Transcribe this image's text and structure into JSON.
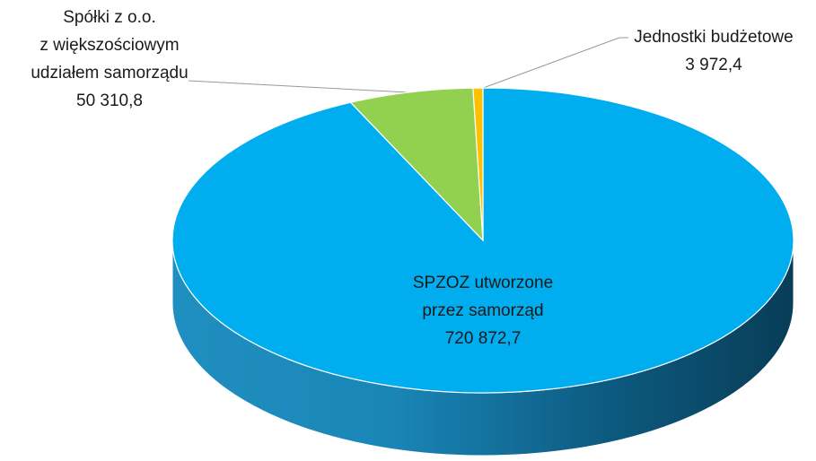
{
  "chart_data": {
    "type": "pie",
    "categories": [
      [
        "SPZOZ utworzone",
        "przez samorząd"
      ],
      [
        "Spółki z o.o.",
        "z większościowym",
        "udziałem samorządu"
      ],
      [
        "Jednostki budżetowe"
      ]
    ],
    "values": [
      720872.7,
      50310.8,
      3972.4
    ],
    "value_labels": [
      "720 872,7",
      "50 310,8",
      "3 972,4"
    ],
    "colors": [
      "#00aeef",
      "#92d050",
      "#ffc000"
    ],
    "three_d": true
  }
}
